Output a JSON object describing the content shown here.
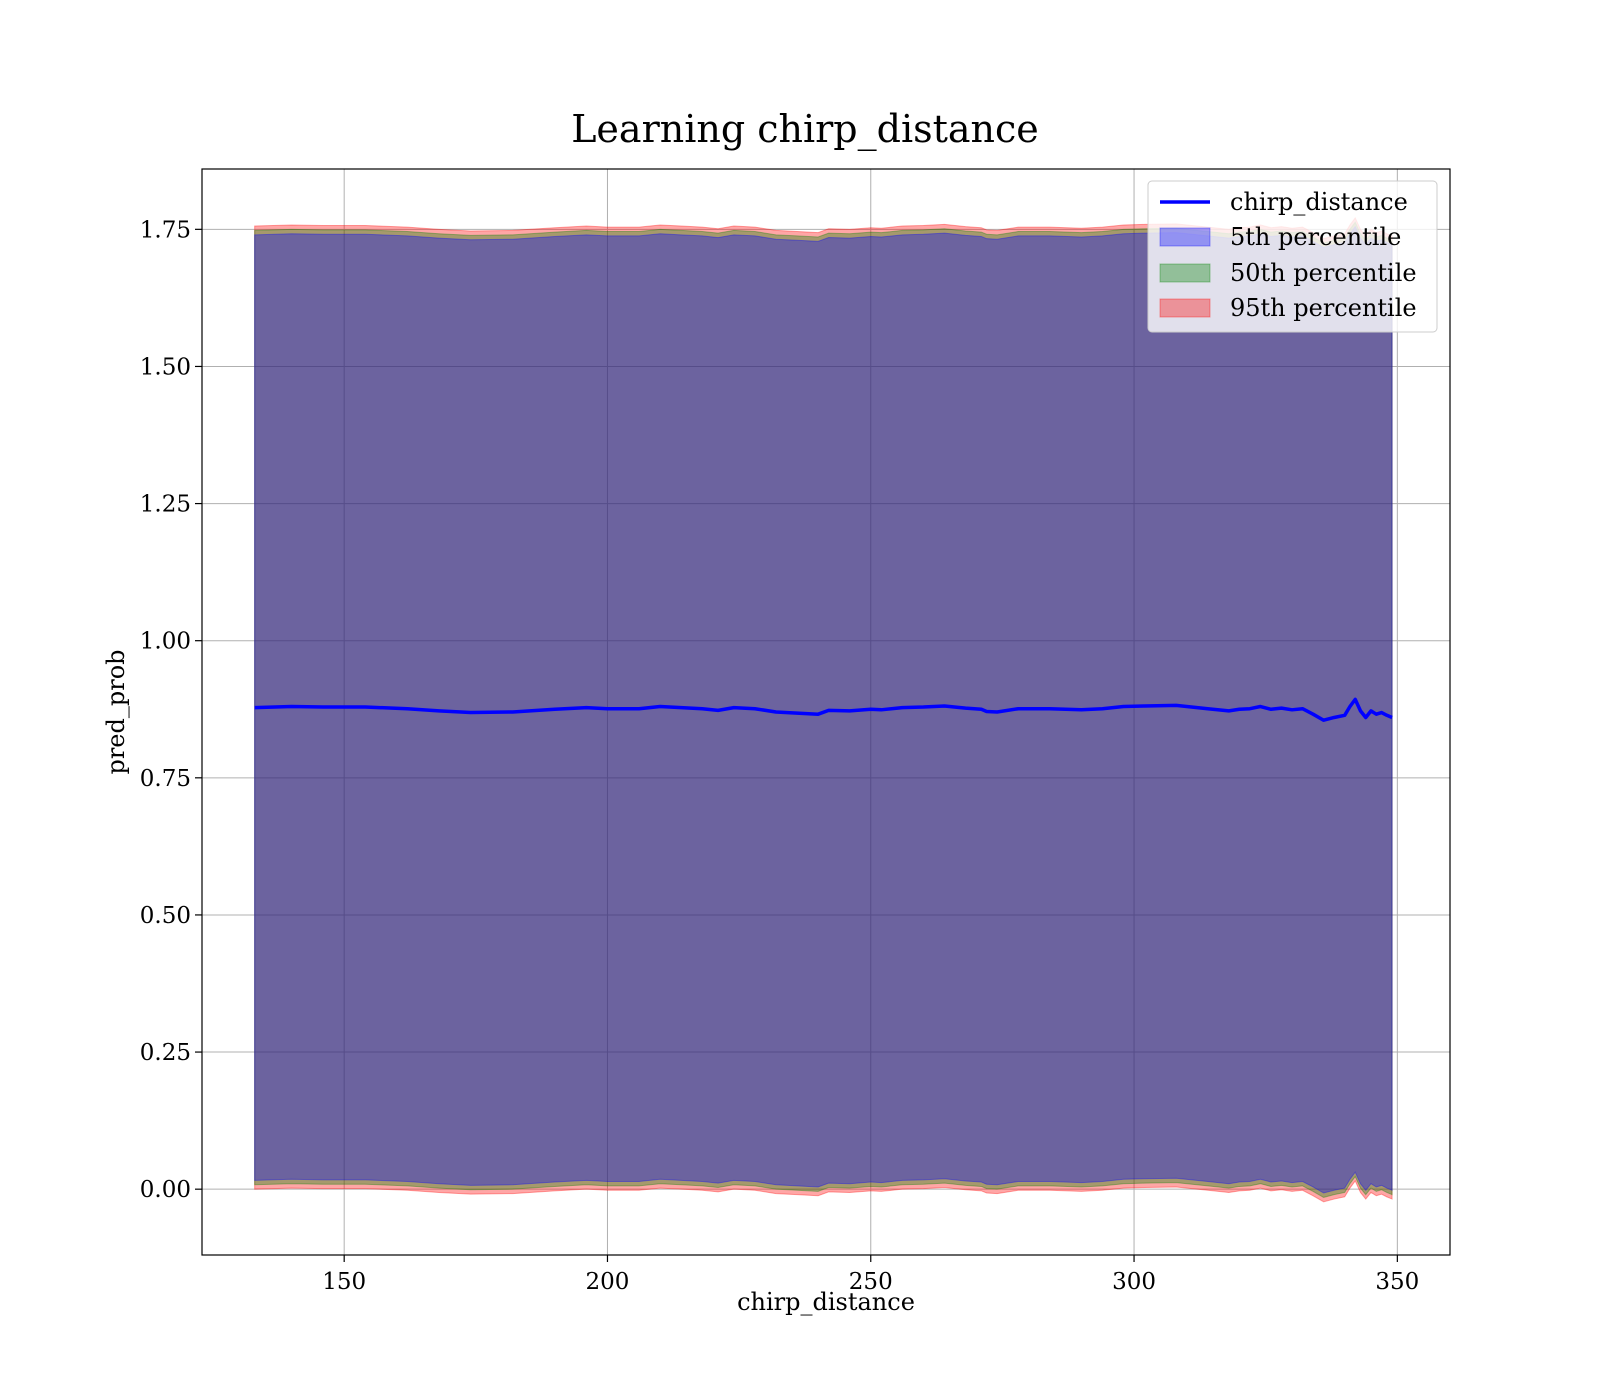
{
  "chart_data": {
    "type": "line",
    "title": "Learning chirp_distance",
    "xlabel": "chirp_distance",
    "ylabel": "pred_prob",
    "xlim": [
      123,
      360
    ],
    "ylim": [
      -0.12,
      1.86
    ],
    "xticks": [
      150,
      200,
      250,
      300,
      350
    ],
    "xtick_labels": [
      "150",
      "200",
      "250",
      "300",
      "350"
    ],
    "yticks": [
      0.0,
      0.25,
      0.5,
      0.75,
      1.0,
      1.25,
      1.5,
      1.75
    ],
    "ytick_labels": [
      "0.00",
      "0.25",
      "0.50",
      "0.75",
      "1.00",
      "1.25",
      "1.50",
      "1.75"
    ],
    "grid": true,
    "legend_position": "top-right",
    "colors": {
      "line": "#0000ff",
      "p5": "#0000ff",
      "p50": "#008000",
      "p95": "#ff0000",
      "band_overlap": "#a1727b"
    },
    "x": [
      133,
      140,
      146,
      154,
      162,
      168,
      174,
      182,
      190,
      196,
      200,
      206,
      210,
      214,
      218,
      221,
      224,
      228,
      232,
      236,
      240,
      242,
      246,
      250,
      252,
      256,
      260,
      264,
      268,
      271,
      272,
      274,
      278,
      284,
      290,
      294,
      298,
      302,
      308,
      314,
      318,
      320,
      322,
      324,
      326,
      328,
      330,
      332,
      334,
      336,
      338,
      340,
      341,
      342,
      343,
      344,
      345,
      346,
      347,
      348,
      349
    ],
    "series": [
      {
        "name": "chirp_distance",
        "style": "line",
        "values": [
          0.878,
          0.88,
          0.879,
          0.879,
          0.876,
          0.872,
          0.869,
          0.87,
          0.875,
          0.878,
          0.876,
          0.876,
          0.88,
          0.878,
          0.876,
          0.873,
          0.878,
          0.876,
          0.87,
          0.868,
          0.866,
          0.873,
          0.872,
          0.875,
          0.874,
          0.878,
          0.879,
          0.881,
          0.877,
          0.875,
          0.871,
          0.87,
          0.876,
          0.876,
          0.874,
          0.876,
          0.88,
          0.881,
          0.882,
          0.876,
          0.872,
          0.875,
          0.876,
          0.88,
          0.875,
          0.877,
          0.874,
          0.876,
          0.866,
          0.855,
          0.86,
          0.864,
          0.88,
          0.893,
          0.872,
          0.86,
          0.872,
          0.866,
          0.869,
          0.864,
          0.86
        ]
      },
      {
        "name": "5th percentile",
        "style": "band",
        "upper": [
          1.74,
          1.742,
          1.741,
          1.741,
          1.738,
          1.734,
          1.731,
          1.732,
          1.737,
          1.74,
          1.738,
          1.738,
          1.742,
          1.74,
          1.738,
          1.735,
          1.74,
          1.738,
          1.732,
          1.73,
          1.728,
          1.735,
          1.734,
          1.737,
          1.736,
          1.74,
          1.741,
          1.743,
          1.739,
          1.737,
          1.733,
          1.732,
          1.738,
          1.738,
          1.736,
          1.738,
          1.742,
          1.743,
          1.744,
          1.738,
          1.734,
          1.737,
          1.738,
          1.742,
          1.737,
          1.739,
          1.736,
          1.738,
          1.728,
          1.717,
          1.722,
          1.726,
          1.742,
          1.755,
          1.734,
          1.722,
          1.734,
          1.728,
          1.731,
          1.726,
          1.722
        ],
        "lower": [
          0.016,
          0.018,
          0.017,
          0.017,
          0.014,
          0.01,
          0.007,
          0.008,
          0.013,
          0.016,
          0.014,
          0.014,
          0.018,
          0.016,
          0.014,
          0.011,
          0.016,
          0.014,
          0.008,
          0.006,
          0.004,
          0.011,
          0.01,
          0.013,
          0.012,
          0.016,
          0.017,
          0.019,
          0.015,
          0.013,
          0.009,
          0.008,
          0.014,
          0.014,
          0.012,
          0.014,
          0.018,
          0.019,
          0.02,
          0.014,
          0.01,
          0.013,
          0.014,
          0.018,
          0.013,
          0.015,
          0.012,
          0.014,
          0.004,
          -0.007,
          -0.002,
          0.002,
          0.018,
          0.031,
          0.01,
          -0.002,
          0.01,
          0.004,
          0.007,
          0.002,
          -0.002
        ]
      },
      {
        "name": "50th percentile",
        "style": "band",
        "upper": [
          1.748,
          1.75,
          1.749,
          1.749,
          1.746,
          1.742,
          1.739,
          1.74,
          1.745,
          1.748,
          1.746,
          1.746,
          1.75,
          1.748,
          1.746,
          1.743,
          1.748,
          1.746,
          1.74,
          1.738,
          1.736,
          1.743,
          1.742,
          1.745,
          1.744,
          1.748,
          1.749,
          1.751,
          1.747,
          1.745,
          1.741,
          1.74,
          1.746,
          1.746,
          1.744,
          1.746,
          1.75,
          1.751,
          1.752,
          1.746,
          1.742,
          1.745,
          1.746,
          1.75,
          1.745,
          1.747,
          1.744,
          1.746,
          1.736,
          1.725,
          1.73,
          1.734,
          1.75,
          1.763,
          1.742,
          1.73,
          1.742,
          1.736,
          1.739,
          1.734,
          1.73
        ],
        "lower": [
          0.008,
          0.01,
          0.009,
          0.009,
          0.006,
          0.002,
          -0.001,
          0.0,
          0.005,
          0.008,
          0.006,
          0.006,
          0.01,
          0.008,
          0.006,
          0.003,
          0.008,
          0.006,
          0.0,
          -0.002,
          -0.004,
          0.003,
          0.002,
          0.005,
          0.004,
          0.008,
          0.009,
          0.011,
          0.007,
          0.005,
          0.001,
          0.0,
          0.006,
          0.006,
          0.004,
          0.006,
          0.01,
          0.011,
          0.012,
          0.006,
          0.002,
          0.005,
          0.006,
          0.01,
          0.005,
          0.007,
          0.004,
          0.006,
          -0.004,
          -0.015,
          -0.01,
          -0.006,
          0.01,
          0.023,
          0.002,
          -0.01,
          0.002,
          -0.004,
          -0.001,
          -0.006,
          -0.01
        ]
      },
      {
        "name": "95th percentile",
        "style": "band",
        "upper": [
          1.756,
          1.758,
          1.757,
          1.757,
          1.754,
          1.75,
          1.747,
          1.748,
          1.753,
          1.756,
          1.754,
          1.754,
          1.758,
          1.756,
          1.754,
          1.751,
          1.756,
          1.754,
          1.748,
          1.746,
          1.744,
          1.751,
          1.75,
          1.753,
          1.752,
          1.756,
          1.757,
          1.759,
          1.755,
          1.753,
          1.749,
          1.748,
          1.754,
          1.754,
          1.752,
          1.754,
          1.758,
          1.759,
          1.76,
          1.754,
          1.75,
          1.753,
          1.754,
          1.758,
          1.753,
          1.755,
          1.752,
          1.754,
          1.744,
          1.733,
          1.738,
          1.742,
          1.758,
          1.771,
          1.75,
          1.738,
          1.75,
          1.744,
          1.747,
          1.742,
          1.738
        ],
        "lower": [
          0.0,
          0.002,
          0.001,
          0.001,
          -0.002,
          -0.006,
          -0.009,
          -0.008,
          -0.003,
          0.0,
          -0.002,
          -0.002,
          0.002,
          0.0,
          -0.002,
          -0.005,
          0.0,
          -0.002,
          -0.008,
          -0.01,
          -0.012,
          -0.005,
          -0.006,
          -0.003,
          -0.004,
          0.0,
          0.001,
          0.003,
          -0.001,
          -0.003,
          -0.007,
          -0.008,
          -0.002,
          -0.002,
          -0.004,
          -0.002,
          0.002,
          0.003,
          0.004,
          -0.002,
          -0.006,
          -0.003,
          -0.002,
          0.002,
          -0.003,
          -0.001,
          -0.004,
          -0.002,
          -0.012,
          -0.023,
          -0.018,
          -0.014,
          0.002,
          0.015,
          -0.006,
          -0.018,
          -0.006,
          -0.012,
          -0.009,
          -0.014,
          -0.018
        ]
      }
    ]
  }
}
